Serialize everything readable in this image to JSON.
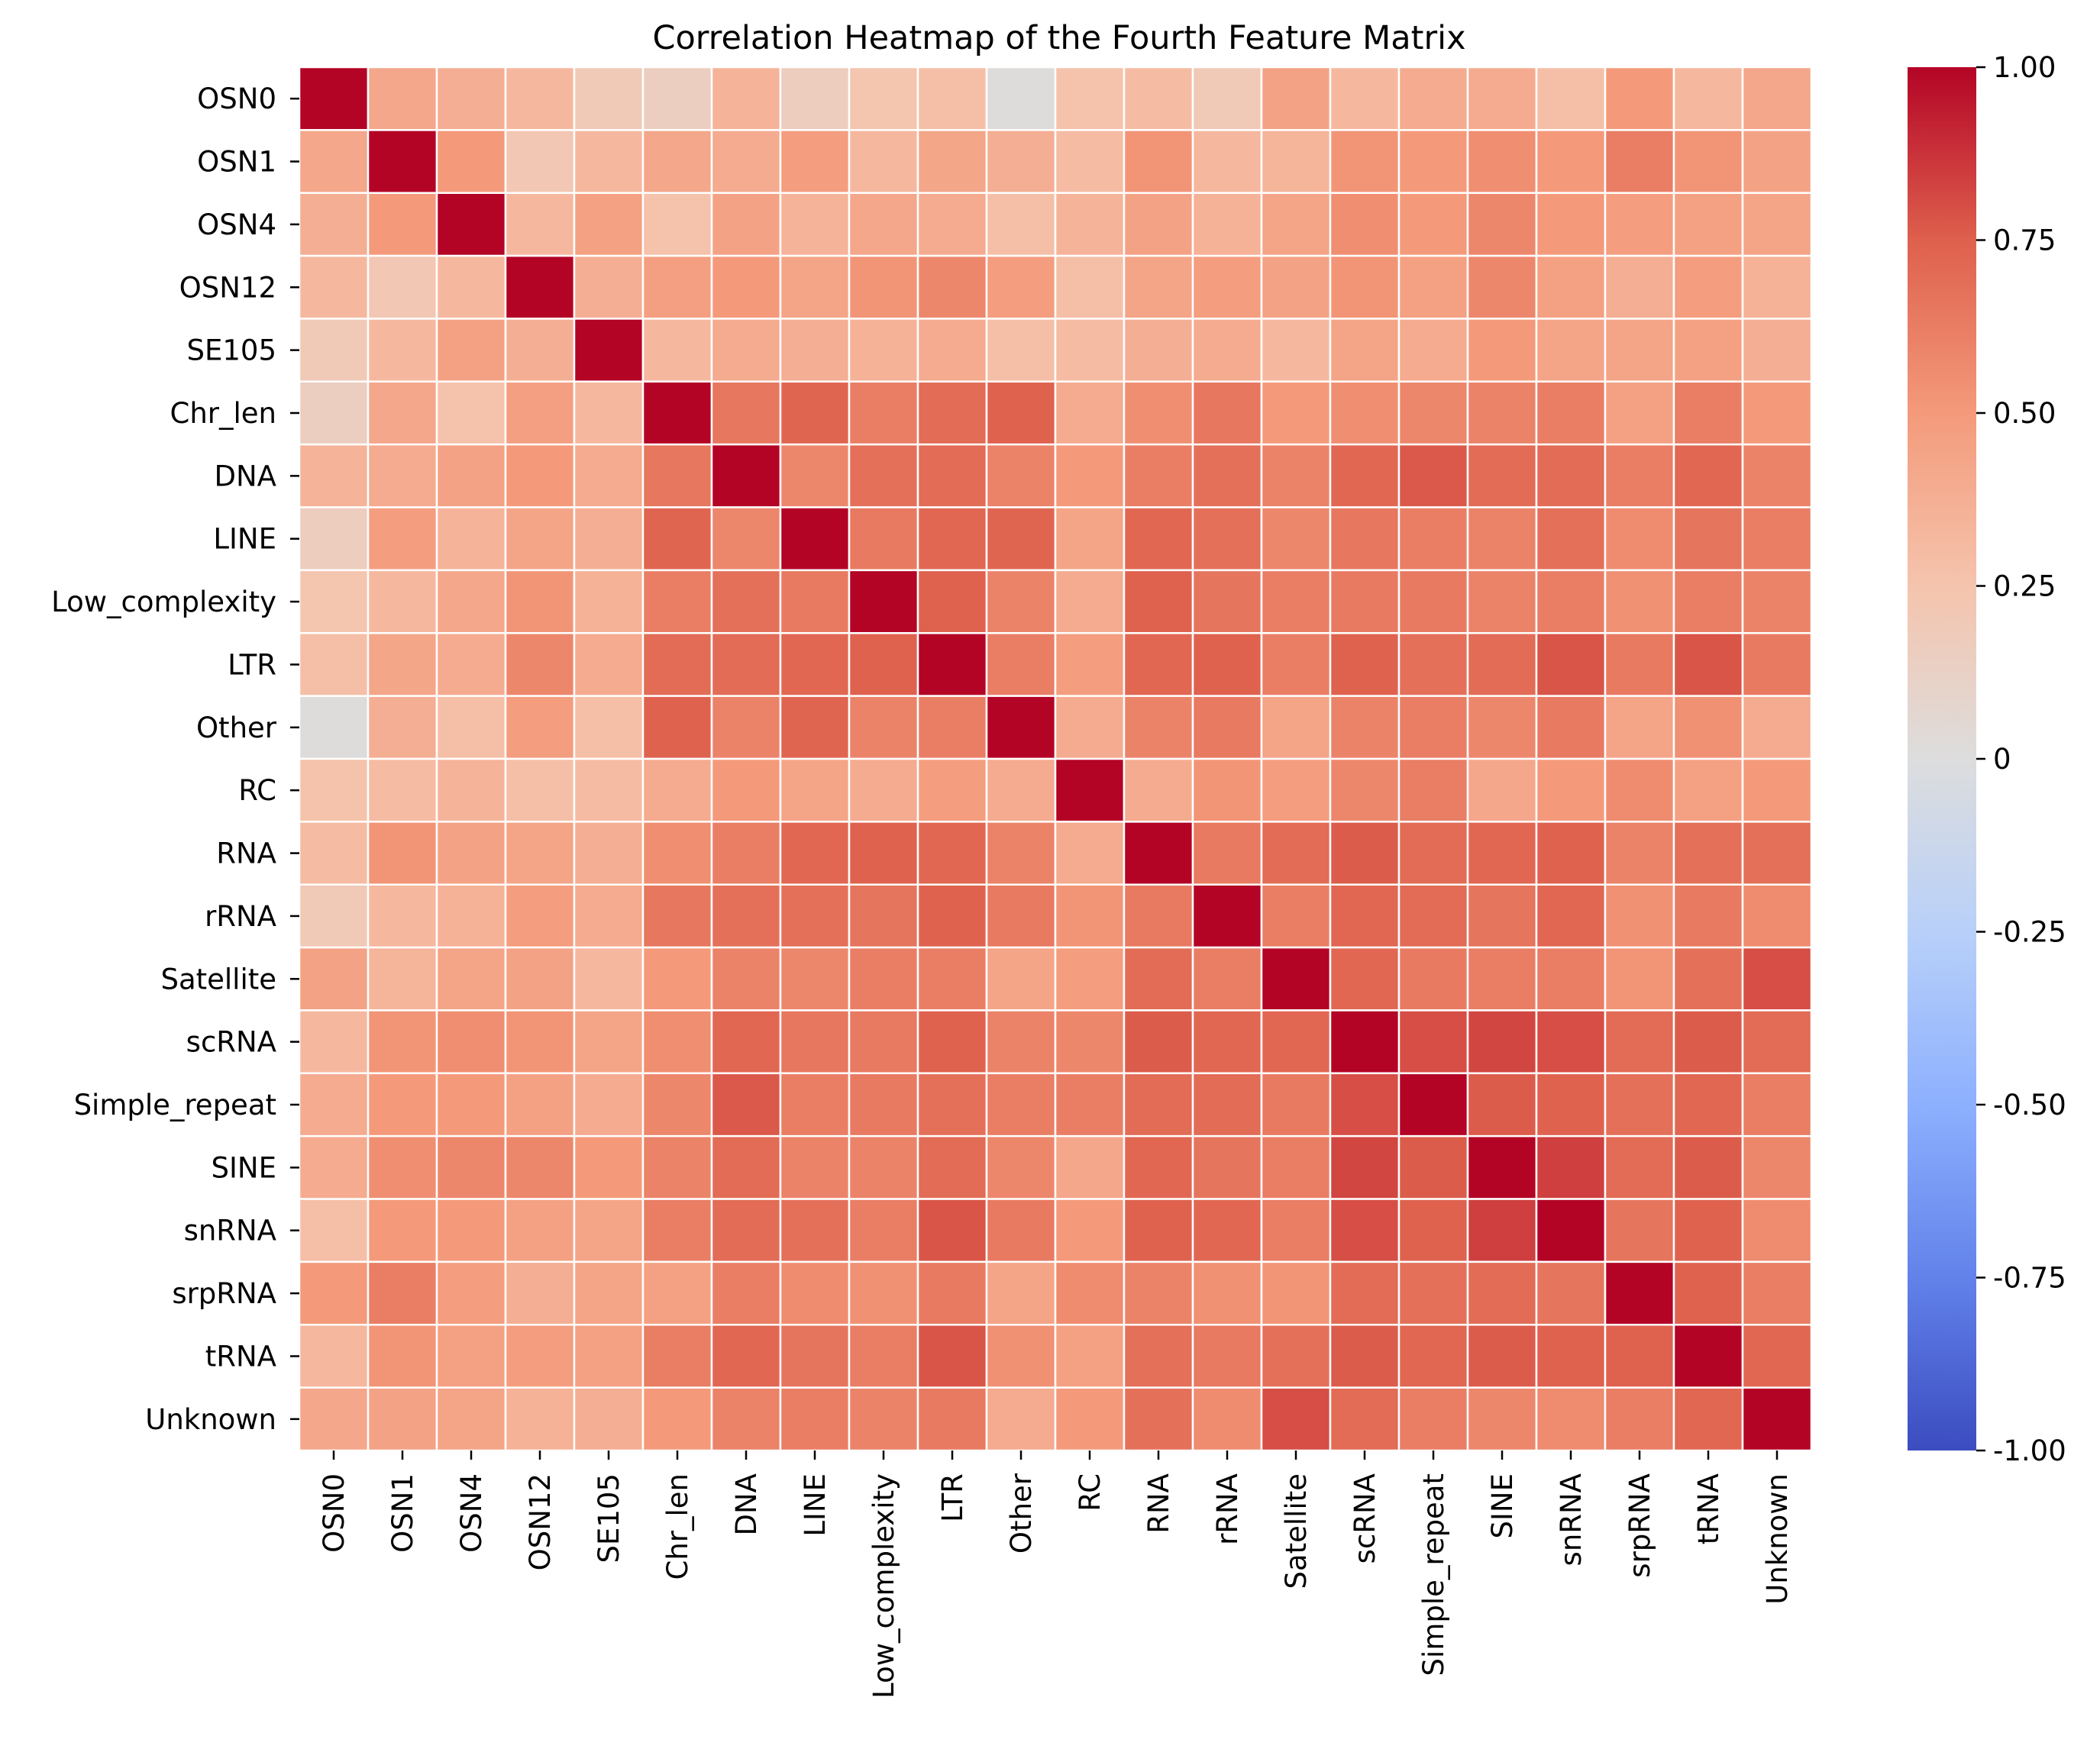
{
  "chart_data": {
    "type": "heatmap",
    "title": "Correlation Heatmap of the Fourth Feature Matrix",
    "colormap": "coolwarm",
    "vmin": -1.0,
    "vmax": 1.0,
    "grid": false,
    "legend": "colorbar-right",
    "labels": [
      "OSN0",
      "OSN1",
      "OSN4",
      "OSN12",
      "SE105",
      "Chr_len",
      "DNA",
      "LINE",
      "Low_complexity",
      "LTR",
      "Other",
      "RC",
      "RNA",
      "rRNA",
      "Satellite",
      "scRNA",
      "Simple_repeat",
      "SINE",
      "snRNA",
      "srpRNA",
      "tRNA",
      "Unknown"
    ],
    "colorbar_ticks": [
      "1.00",
      "0.75",
      "0.50",
      "0.25",
      "0",
      "-0.25",
      "-0.50",
      "-0.75",
      "-1.00"
    ],
    "colorbar_tick_values": [
      1.0,
      0.75,
      0.5,
      0.25,
      0.0,
      -0.25,
      -0.5,
      -0.75,
      -1.0
    ],
    "matrix": [
      [
        1.0,
        0.42,
        0.38,
        0.32,
        0.2,
        0.15,
        0.35,
        0.16,
        0.24,
        0.28,
        0.01,
        0.26,
        0.3,
        0.2,
        0.45,
        0.32,
        0.4,
        0.4,
        0.28,
        0.5,
        0.33,
        0.42
      ],
      [
        0.42,
        1.0,
        0.5,
        0.22,
        0.32,
        0.42,
        0.4,
        0.48,
        0.32,
        0.43,
        0.38,
        0.3,
        0.52,
        0.32,
        0.34,
        0.52,
        0.5,
        0.55,
        0.5,
        0.62,
        0.52,
        0.45
      ],
      [
        0.38,
        0.5,
        1.0,
        0.32,
        0.46,
        0.26,
        0.45,
        0.35,
        0.42,
        0.4,
        0.28,
        0.35,
        0.45,
        0.36,
        0.44,
        0.55,
        0.5,
        0.58,
        0.5,
        0.48,
        0.46,
        0.44
      ],
      [
        0.32,
        0.22,
        0.32,
        1.0,
        0.38,
        0.47,
        0.5,
        0.44,
        0.52,
        0.58,
        0.48,
        0.28,
        0.44,
        0.48,
        0.45,
        0.52,
        0.46,
        0.58,
        0.46,
        0.38,
        0.48,
        0.36
      ],
      [
        0.2,
        0.32,
        0.46,
        0.38,
        1.0,
        0.32,
        0.4,
        0.38,
        0.36,
        0.4,
        0.28,
        0.3,
        0.38,
        0.4,
        0.32,
        0.44,
        0.4,
        0.5,
        0.44,
        0.44,
        0.46,
        0.38
      ],
      [
        0.15,
        0.42,
        0.26,
        0.47,
        0.32,
        1.0,
        0.65,
        0.73,
        0.62,
        0.7,
        0.74,
        0.4,
        0.55,
        0.65,
        0.5,
        0.55,
        0.58,
        0.6,
        0.62,
        0.46,
        0.62,
        0.5
      ],
      [
        0.35,
        0.4,
        0.45,
        0.5,
        0.4,
        0.65,
        1.0,
        0.58,
        0.68,
        0.7,
        0.6,
        0.5,
        0.62,
        0.68,
        0.6,
        0.72,
        0.77,
        0.7,
        0.7,
        0.62,
        0.72,
        0.6
      ],
      [
        0.16,
        0.48,
        0.35,
        0.44,
        0.38,
        0.73,
        0.58,
        1.0,
        0.64,
        0.72,
        0.73,
        0.44,
        0.72,
        0.68,
        0.58,
        0.65,
        0.62,
        0.6,
        0.68,
        0.56,
        0.66,
        0.62
      ],
      [
        0.24,
        0.32,
        0.42,
        0.52,
        0.36,
        0.62,
        0.68,
        0.64,
        1.0,
        0.74,
        0.6,
        0.4,
        0.74,
        0.66,
        0.62,
        0.64,
        0.64,
        0.6,
        0.62,
        0.54,
        0.62,
        0.6
      ],
      [
        0.28,
        0.43,
        0.4,
        0.58,
        0.4,
        0.7,
        0.7,
        0.72,
        0.74,
        1.0,
        0.62,
        0.48,
        0.72,
        0.74,
        0.62,
        0.74,
        0.68,
        0.7,
        0.78,
        0.64,
        0.78,
        0.64
      ],
      [
        0.01,
        0.38,
        0.28,
        0.48,
        0.28,
        0.74,
        0.6,
        0.73,
        0.6,
        0.62,
        1.0,
        0.4,
        0.6,
        0.64,
        0.44,
        0.6,
        0.62,
        0.58,
        0.64,
        0.44,
        0.54,
        0.4
      ],
      [
        0.26,
        0.3,
        0.35,
        0.28,
        0.3,
        0.4,
        0.5,
        0.44,
        0.4,
        0.48,
        0.4,
        1.0,
        0.4,
        0.52,
        0.48,
        0.58,
        0.62,
        0.42,
        0.5,
        0.56,
        0.46,
        0.5
      ],
      [
        0.3,
        0.52,
        0.45,
        0.44,
        0.38,
        0.55,
        0.62,
        0.72,
        0.74,
        0.72,
        0.6,
        0.4,
        1.0,
        0.64,
        0.7,
        0.76,
        0.7,
        0.72,
        0.74,
        0.6,
        0.68,
        0.68
      ],
      [
        0.2,
        0.32,
        0.36,
        0.48,
        0.4,
        0.65,
        0.68,
        0.68,
        0.66,
        0.74,
        0.64,
        0.52,
        0.64,
        1.0,
        0.62,
        0.72,
        0.7,
        0.66,
        0.72,
        0.54,
        0.64,
        0.56
      ],
      [
        0.45,
        0.34,
        0.44,
        0.45,
        0.32,
        0.5,
        0.6,
        0.58,
        0.62,
        0.62,
        0.44,
        0.48,
        0.7,
        0.62,
        1.0,
        0.72,
        0.64,
        0.62,
        0.62,
        0.52,
        0.68,
        0.8
      ],
      [
        0.32,
        0.52,
        0.55,
        0.52,
        0.44,
        0.55,
        0.72,
        0.65,
        0.64,
        0.74,
        0.6,
        0.58,
        0.76,
        0.72,
        0.72,
        1.0,
        0.8,
        0.82,
        0.8,
        0.7,
        0.76,
        0.7
      ],
      [
        0.4,
        0.5,
        0.5,
        0.46,
        0.4,
        0.58,
        0.77,
        0.62,
        0.64,
        0.68,
        0.62,
        0.62,
        0.7,
        0.7,
        0.64,
        0.8,
        1.0,
        0.76,
        0.74,
        0.68,
        0.72,
        0.62
      ],
      [
        0.4,
        0.55,
        0.58,
        0.58,
        0.5,
        0.6,
        0.7,
        0.6,
        0.6,
        0.7,
        0.58,
        0.42,
        0.72,
        0.66,
        0.62,
        0.82,
        0.76,
        1.0,
        0.84,
        0.7,
        0.76,
        0.58
      ],
      [
        0.28,
        0.5,
        0.5,
        0.46,
        0.44,
        0.62,
        0.7,
        0.68,
        0.62,
        0.78,
        0.64,
        0.5,
        0.74,
        0.72,
        0.62,
        0.8,
        0.74,
        0.84,
        1.0,
        0.66,
        0.74,
        0.56
      ],
      [
        0.5,
        0.62,
        0.48,
        0.38,
        0.44,
        0.46,
        0.62,
        0.56,
        0.54,
        0.64,
        0.44,
        0.56,
        0.6,
        0.54,
        0.52,
        0.7,
        0.68,
        0.7,
        0.66,
        1.0,
        0.74,
        0.62
      ],
      [
        0.33,
        0.52,
        0.46,
        0.48,
        0.46,
        0.62,
        0.72,
        0.66,
        0.62,
        0.78,
        0.54,
        0.46,
        0.68,
        0.64,
        0.68,
        0.76,
        0.72,
        0.76,
        0.74,
        0.74,
        1.0,
        0.72
      ],
      [
        0.42,
        0.45,
        0.44,
        0.36,
        0.38,
        0.5,
        0.6,
        0.62,
        0.6,
        0.64,
        0.4,
        0.5,
        0.68,
        0.56,
        0.8,
        0.7,
        0.62,
        0.58,
        0.56,
        0.62,
        0.72,
        1.0
      ]
    ]
  }
}
